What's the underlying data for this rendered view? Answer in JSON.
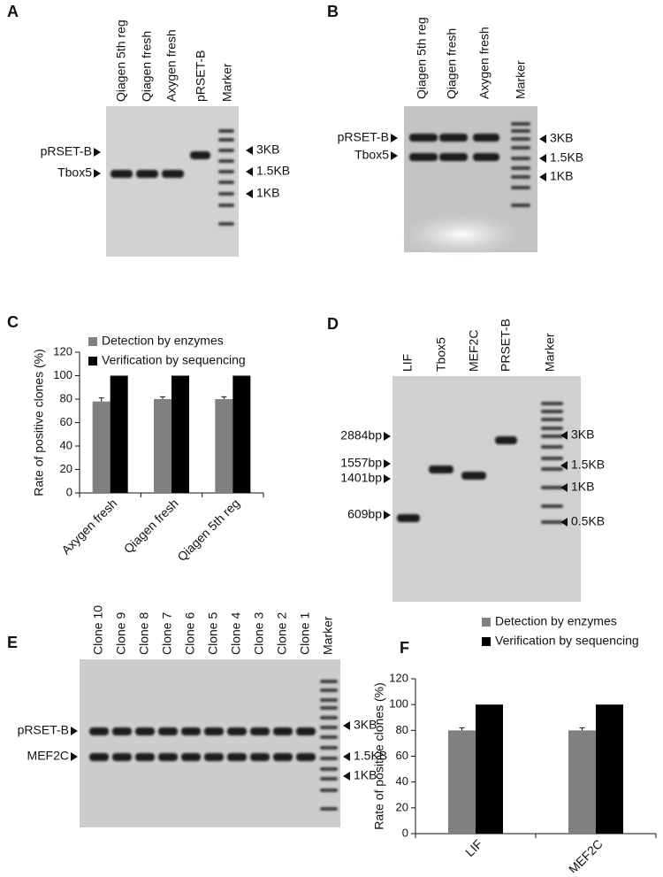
{
  "gels": [
    {
      "panel": "A",
      "lanes": [
        "Qiagen 5th reg",
        "Qiagen fresh",
        "Axygen fresh",
        "pRSET-B",
        "Marker"
      ],
      "left_labels": [
        "pRSET-B",
        "Tbox5"
      ],
      "right_labels": [
        "3KB",
        "1.5KB",
        "1KB"
      ]
    },
    {
      "panel": "B",
      "lanes": [
        "Qiagen 5th reg",
        "Qiagen fresh",
        "Axygen fresh",
        "Marker"
      ],
      "left_labels": [
        "pRSET-B",
        "Tbox5"
      ],
      "right_labels": [
        "3KB",
        "1.5KB",
        "1KB"
      ]
    },
    {
      "panel": "D",
      "lanes": [
        "LIF",
        "Tbox5",
        "MEF2C",
        "PRSET-B",
        "Marker"
      ],
      "left_labels": [
        "2884bp",
        "1557bp",
        "1401bp",
        "609bp"
      ],
      "right_labels": [
        "3KB",
        "1.5KB",
        "1KB",
        "0.5KB"
      ]
    },
    {
      "panel": "E",
      "lanes": [
        "Clone 10",
        "Clone 9",
        "Clone 8",
        "Clone 7",
        "Clone 6",
        "Clone 5",
        "Clone 4",
        "Clone 3",
        "Clone 2",
        "Clone 1",
        "Marker"
      ],
      "left_labels": [
        "pRSET-B",
        "MEF2C"
      ],
      "right_labels": [
        "3KB",
        "1.5KB",
        "1KB"
      ]
    }
  ],
  "chart_data": [
    {
      "type": "bar",
      "panel": "C",
      "ylabel": "Rate of positive clones (%)",
      "categories": [
        "Axygen fresh",
        "Qiagen fresh",
        "Qiagen 5th reg"
      ],
      "series": [
        {
          "name": "Detection by enzymes",
          "color": "#808080",
          "values": [
            78,
            80,
            80
          ],
          "errors": [
            3,
            2,
            2
          ]
        },
        {
          "name": "Verification by sequencing",
          "color": "#000000",
          "values": [
            100,
            100,
            100
          ]
        }
      ],
      "ylim": [
        0,
        120
      ],
      "yticks": [
        0,
        20,
        40,
        60,
        80,
        100,
        120
      ]
    },
    {
      "type": "bar",
      "panel": "F",
      "ylabel": "Rate of positive clones (%)",
      "categories": [
        "LIF",
        "MEF2C"
      ],
      "series": [
        {
          "name": "Detection by enzymes",
          "color": "#808080",
          "values": [
            80,
            80
          ],
          "errors": [
            2,
            2
          ]
        },
        {
          "name": "Verification by sequencing",
          "color": "#000000",
          "values": [
            100,
            100
          ]
        }
      ],
      "ylim": [
        0,
        120
      ],
      "yticks": [
        0,
        20,
        40,
        60,
        80,
        100,
        120
      ]
    }
  ]
}
